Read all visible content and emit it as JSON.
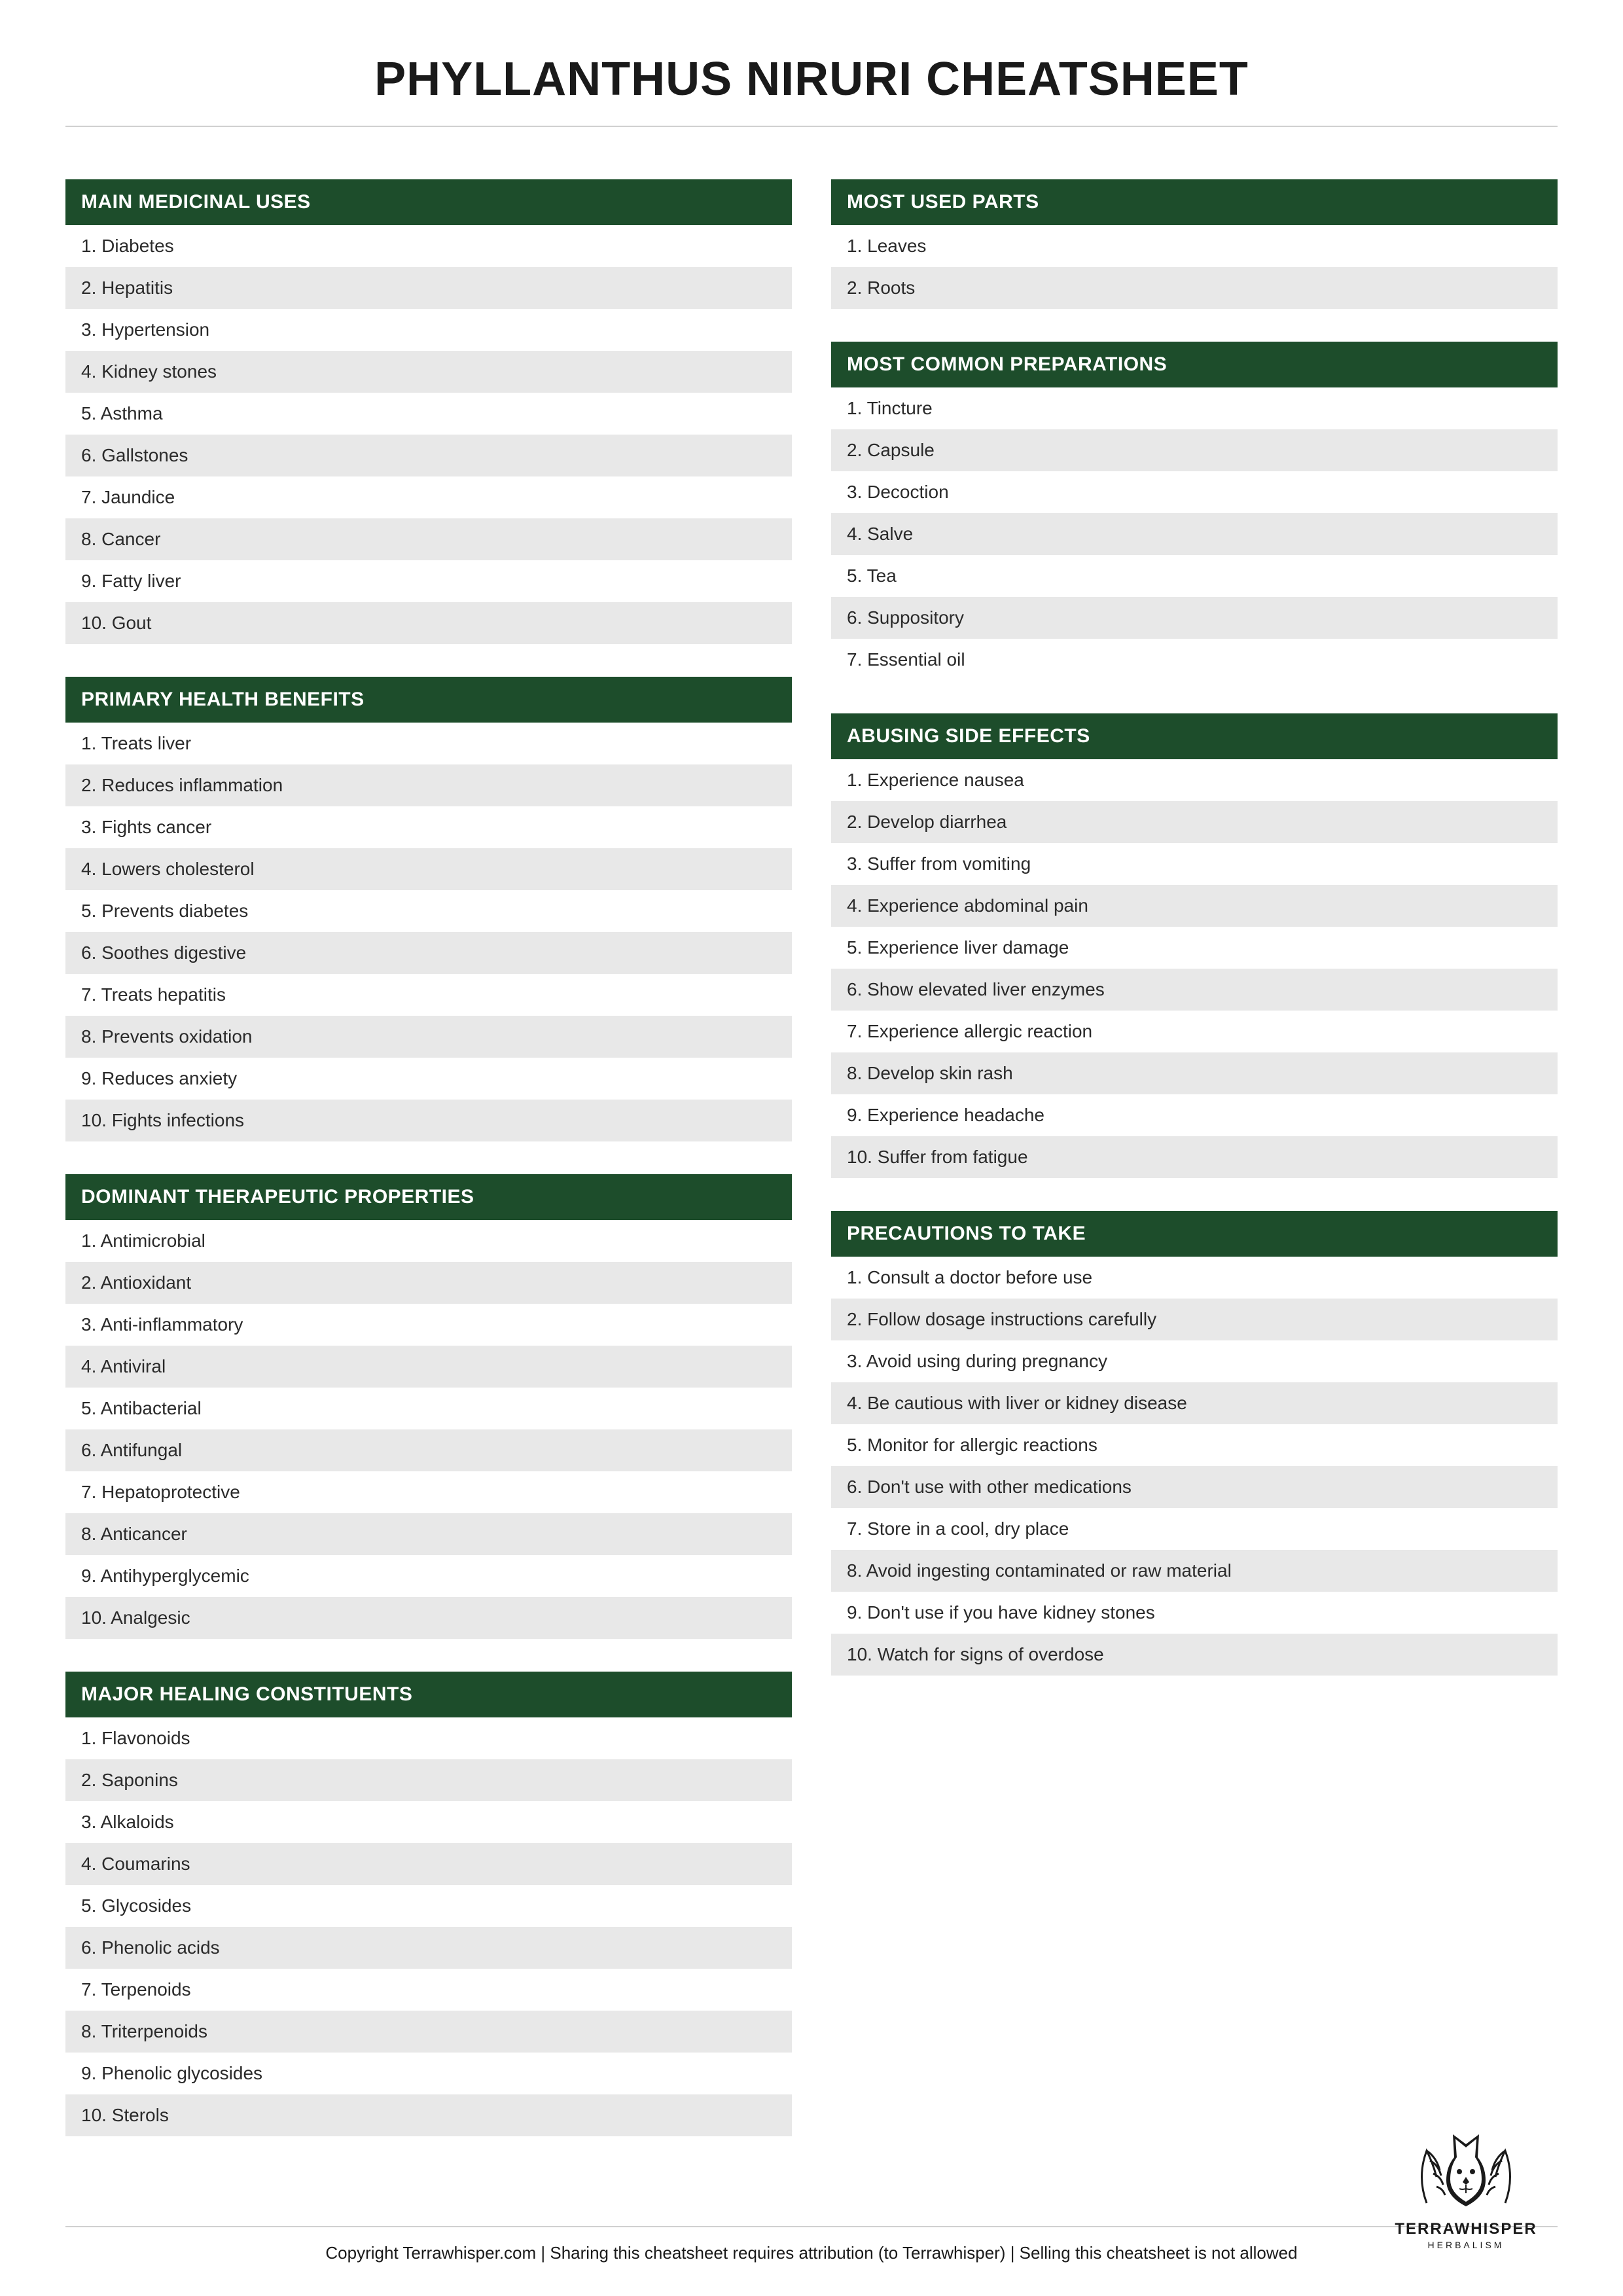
{
  "title": "PHYLLANTHUS NIRURI CHEATSHEET",
  "colors": {
    "header_bg": "#1d4d2b",
    "header_text": "#ffffff",
    "row_even": "#e8e8e8",
    "row_odd": "#ffffff",
    "text": "#2a2a2a",
    "divider": "#d0d0d0"
  },
  "left": [
    {
      "header": "MAIN MEDICINAL USES",
      "items": [
        "Diabetes",
        "Hepatitis",
        "Hypertension",
        "Kidney stones",
        "Asthma",
        "Gallstones",
        "Jaundice",
        "Cancer",
        "Fatty liver",
        "Gout"
      ]
    },
    {
      "header": "PRIMARY HEALTH BENEFITS",
      "items": [
        "Treats liver",
        "Reduces inflammation",
        "Fights cancer",
        "Lowers cholesterol",
        "Prevents diabetes",
        "Soothes digestive",
        "Treats hepatitis",
        "Prevents oxidation",
        "Reduces anxiety",
        "Fights infections"
      ]
    },
    {
      "header": "DOMINANT THERAPEUTIC PROPERTIES",
      "items": [
        "Antimicrobial",
        "Antioxidant",
        "Anti-inflammatory",
        "Antiviral",
        "Antibacterial",
        "Antifungal",
        "Hepatoprotective",
        "Anticancer",
        "Antihyperglycemic",
        "Analgesic"
      ]
    },
    {
      "header": "MAJOR HEALING CONSTITUENTS",
      "items": [
        "Flavonoids",
        "Saponins",
        "Alkaloids",
        "Coumarins",
        "Glycosides",
        "Phenolic acids",
        "Terpenoids",
        "Triterpenoids",
        "Phenolic glycosides",
        "Sterols"
      ]
    }
  ],
  "right": [
    {
      "header": "MOST USED PARTS",
      "items": [
        "Leaves",
        "Roots"
      ]
    },
    {
      "header": "MOST COMMON PREPARATIONS",
      "items": [
        "Tincture",
        "Capsule",
        "Decoction",
        "Salve",
        "Tea",
        "Suppository",
        "Essential oil"
      ]
    },
    {
      "header": "ABUSING SIDE EFFECTS",
      "items": [
        "Experience nausea",
        "Develop diarrhea",
        "Suffer from vomiting",
        "Experience abdominal pain",
        "Experience liver damage",
        "Show elevated liver enzymes",
        "Experience allergic reaction",
        "Develop skin rash",
        "Experience headache",
        "Suffer from fatigue"
      ]
    },
    {
      "header": "PRECAUTIONS TO TAKE",
      "items": [
        "Consult a doctor before use",
        "Follow dosage instructions carefully",
        "Avoid using during pregnancy",
        "Be cautious with liver or kidney disease",
        "Monitor for allergic reactions",
        "Don't use with other medications",
        "Store in a cool, dry place",
        "Avoid ingesting contaminated or raw material",
        "Don't use if you have kidney stones",
        "Watch for signs of overdose"
      ]
    }
  ],
  "logo": {
    "brand": "TERRAWHISPER",
    "sub": "HERBALISM"
  },
  "copyright": "Copyright Terrawhisper.com | Sharing this cheatsheet requires attribution (to Terrawhisper) | Selling this cheatsheet is not allowed"
}
